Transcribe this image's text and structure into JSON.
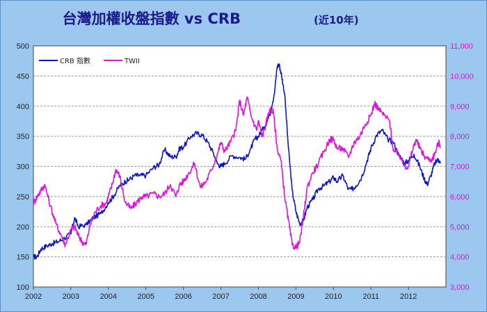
{
  "chart_data": {
    "type": "line",
    "title": "台灣加權收盤指數 vs CRB",
    "subtitle": "(近10年)",
    "x_ticks": [
      "2002",
      "2003",
      "2004",
      "2005",
      "2006",
      "2007",
      "2008",
      "2009",
      "2010",
      "2011",
      "2012"
    ],
    "x_range": [
      2002.0,
      2013.0
    ],
    "y_left": {
      "range": [
        100,
        500
      ],
      "ticks": [
        "100",
        "150",
        "200",
        "250",
        "300",
        "350",
        "400",
        "450",
        "500"
      ]
    },
    "y_right": {
      "range": [
        3000,
        11000
      ],
      "ticks": [
        "3,000",
        "4,000",
        "5,000",
        "6,000",
        "7,000",
        "8,000",
        "9,000",
        "10,000",
        "11,000"
      ]
    },
    "grid": "horizontal-dashed",
    "legend_position": "top-left",
    "series": [
      {
        "name": "CRB 指數",
        "axis": "left",
        "color": "#0a14c8",
        "points": [
          [
            2002.0,
            150
          ],
          [
            2002.1,
            150
          ],
          [
            2002.2,
            163
          ],
          [
            2002.35,
            168
          ],
          [
            2002.5,
            172
          ],
          [
            2002.65,
            175
          ],
          [
            2002.8,
            180
          ],
          [
            2003.0,
            188
          ],
          [
            2003.1,
            215
          ],
          [
            2003.2,
            200
          ],
          [
            2003.4,
            203
          ],
          [
            2003.6,
            215
          ],
          [
            2003.8,
            222
          ],
          [
            2004.0,
            240
          ],
          [
            2004.15,
            252
          ],
          [
            2004.3,
            268
          ],
          [
            2004.45,
            275
          ],
          [
            2004.55,
            278
          ],
          [
            2004.7,
            285
          ],
          [
            2004.85,
            285
          ],
          [
            2005.0,
            285
          ],
          [
            2005.2,
            298
          ],
          [
            2005.35,
            303
          ],
          [
            2005.5,
            328
          ],
          [
            2005.65,
            316
          ],
          [
            2005.8,
            316
          ],
          [
            2005.9,
            330
          ],
          [
            2006.0,
            332
          ],
          [
            2006.2,
            350
          ],
          [
            2006.35,
            355
          ],
          [
            2006.5,
            352
          ],
          [
            2006.65,
            340
          ],
          [
            2006.8,
            322
          ],
          [
            2006.9,
            305
          ],
          [
            2007.0,
            300
          ],
          [
            2007.1,
            305
          ],
          [
            2007.3,
            318
          ],
          [
            2007.5,
            315
          ],
          [
            2007.65,
            312
          ],
          [
            2007.8,
            330
          ],
          [
            2007.9,
            345
          ],
          [
            2008.0,
            350
          ],
          [
            2008.15,
            365
          ],
          [
            2008.3,
            385
          ],
          [
            2008.42,
            420
          ],
          [
            2008.5,
            465
          ],
          [
            2008.55,
            470
          ],
          [
            2008.62,
            450
          ],
          [
            2008.7,
            420
          ],
          [
            2008.8,
            330
          ],
          [
            2008.9,
            260
          ],
          [
            2009.0,
            225
          ],
          [
            2009.1,
            205
          ],
          [
            2009.2,
            210
          ],
          [
            2009.3,
            232
          ],
          [
            2009.45,
            245
          ],
          [
            2009.6,
            263
          ],
          [
            2009.75,
            268
          ],
          [
            2009.9,
            275
          ],
          [
            2010.0,
            282
          ],
          [
            2010.1,
            275
          ],
          [
            2010.25,
            285
          ],
          [
            2010.4,
            262
          ],
          [
            2010.5,
            262
          ],
          [
            2010.6,
            268
          ],
          [
            2010.75,
            282
          ],
          [
            2010.9,
            310
          ],
          [
            2011.0,
            330
          ],
          [
            2011.15,
            352
          ],
          [
            2011.3,
            360
          ],
          [
            2011.45,
            345
          ],
          [
            2011.6,
            340
          ],
          [
            2011.75,
            318
          ],
          [
            2011.9,
            305
          ],
          [
            2012.0,
            310
          ],
          [
            2012.15,
            320
          ],
          [
            2012.3,
            300
          ],
          [
            2012.42,
            280
          ],
          [
            2012.5,
            270
          ],
          [
            2012.6,
            285
          ],
          [
            2012.7,
            305
          ],
          [
            2012.8,
            312
          ],
          [
            2012.85,
            305
          ]
        ]
      },
      {
        "name": "TWII",
        "axis": "right",
        "color": "#e010e0",
        "points": [
          [
            2002.0,
            5800
          ],
          [
            2002.1,
            6000
          ],
          [
            2002.2,
            6200
          ],
          [
            2002.3,
            6400
          ],
          [
            2002.45,
            5700
          ],
          [
            2002.6,
            5100
          ],
          [
            2002.75,
            4700
          ],
          [
            2002.85,
            4400
          ],
          [
            2003.0,
            4900
          ],
          [
            2003.1,
            5000
          ],
          [
            2003.2,
            4700
          ],
          [
            2003.3,
            4500
          ],
          [
            2003.4,
            4400
          ],
          [
            2003.5,
            5000
          ],
          [
            2003.65,
            5500
          ],
          [
            2003.8,
            5700
          ],
          [
            2003.95,
            5800
          ],
          [
            2004.0,
            6000
          ],
          [
            2004.1,
            6400
          ],
          [
            2004.2,
            6900
          ],
          [
            2004.3,
            6700
          ],
          [
            2004.45,
            5800
          ],
          [
            2004.6,
            5600
          ],
          [
            2004.75,
            5800
          ],
          [
            2004.9,
            6000
          ],
          [
            2005.0,
            6000
          ],
          [
            2005.2,
            6100
          ],
          [
            2005.35,
            6000
          ],
          [
            2005.5,
            6100
          ],
          [
            2005.65,
            6400
          ],
          [
            2005.8,
            6000
          ],
          [
            2005.9,
            6400
          ],
          [
            2006.0,
            6500
          ],
          [
            2006.15,
            6800
          ],
          [
            2006.3,
            7100
          ],
          [
            2006.45,
            6300
          ],
          [
            2006.6,
            6500
          ],
          [
            2006.75,
            6900
          ],
          [
            2006.9,
            7400
          ],
          [
            2007.0,
            7800
          ],
          [
            2007.1,
            7500
          ],
          [
            2007.25,
            7800
          ],
          [
            2007.4,
            8200
          ],
          [
            2007.5,
            9200
          ],
          [
            2007.6,
            8700
          ],
          [
            2007.7,
            9300
          ],
          [
            2007.8,
            8700
          ],
          [
            2007.95,
            8200
          ],
          [
            2008.0,
            8500
          ],
          [
            2008.1,
            8000
          ],
          [
            2008.2,
            8400
          ],
          [
            2008.3,
            8900
          ],
          [
            2008.4,
            8800
          ],
          [
            2008.5,
            7600
          ],
          [
            2008.6,
            7200
          ],
          [
            2008.7,
            6000
          ],
          [
            2008.8,
            5200
          ],
          [
            2008.9,
            4400
          ],
          [
            2009.0,
            4300
          ],
          [
            2009.1,
            4500
          ],
          [
            2009.2,
            5300
          ],
          [
            2009.3,
            6300
          ],
          [
            2009.45,
            6800
          ],
          [
            2009.6,
            7100
          ],
          [
            2009.75,
            7500
          ],
          [
            2009.9,
            7900
          ],
          [
            2010.0,
            7900
          ],
          [
            2010.1,
            7600
          ],
          [
            2010.25,
            7600
          ],
          [
            2010.4,
            7300
          ],
          [
            2010.55,
            7800
          ],
          [
            2010.7,
            8000
          ],
          [
            2010.85,
            8400
          ],
          [
            2011.0,
            8700
          ],
          [
            2011.1,
            9100
          ],
          [
            2011.2,
            8900
          ],
          [
            2011.35,
            8700
          ],
          [
            2011.5,
            8500
          ],
          [
            2011.6,
            7500
          ],
          [
            2011.75,
            7400
          ],
          [
            2011.9,
            7000
          ],
          [
            2012.0,
            7000
          ],
          [
            2012.1,
            7500
          ],
          [
            2012.2,
            7900
          ],
          [
            2012.3,
            7600
          ],
          [
            2012.45,
            7300
          ],
          [
            2012.6,
            7200
          ],
          [
            2012.7,
            7400
          ],
          [
            2012.8,
            7800
          ],
          [
            2012.85,
            7700
          ]
        ]
      }
    ]
  }
}
